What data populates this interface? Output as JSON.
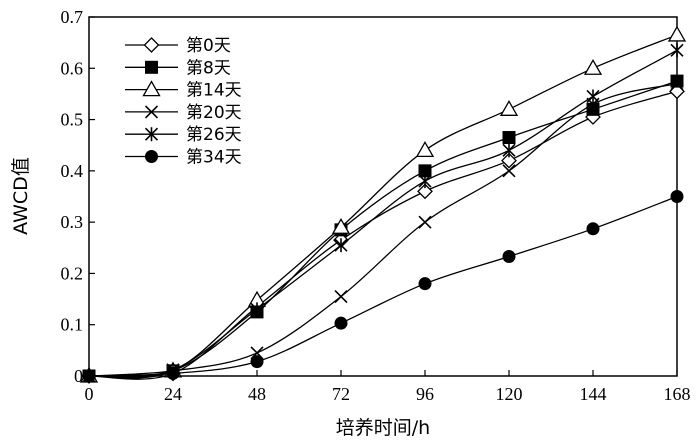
{
  "chart_data": {
    "type": "line",
    "title": "",
    "xlabel": "培养时间/h",
    "ylabel": "AWCD值",
    "x": [
      0,
      24,
      48,
      72,
      96,
      120,
      144,
      168
    ],
    "xticks": [
      "0",
      "24",
      "48",
      "72",
      "96",
      "120",
      "144",
      "168"
    ],
    "yticks": [
      "0",
      "0.1",
      "0.2",
      "0.3",
      "0.4",
      "0.5",
      "0.6",
      "0.7"
    ],
    "xlim": [
      0,
      168
    ],
    "ylim": [
      0,
      0.7
    ],
    "grid": false,
    "legend_position": "top-left",
    "series": [
      {
        "name": "第0天",
        "marker": "diamond-open",
        "values": [
          0,
          0.005,
          0.135,
          0.265,
          0.36,
          0.42,
          0.505,
          0.555
        ]
      },
      {
        "name": "第8天",
        "marker": "square-filled",
        "values": [
          0,
          0.01,
          0.125,
          0.285,
          0.4,
          0.465,
          0.52,
          0.575
        ]
      },
      {
        "name": "第14天",
        "marker": "triangle-open",
        "values": [
          0,
          0.01,
          0.148,
          0.29,
          0.44,
          0.52,
          0.6,
          0.665
        ]
      },
      {
        "name": "第20天",
        "marker": "x",
        "values": [
          0,
          0.01,
          0.045,
          0.155,
          0.3,
          0.4,
          0.53,
          0.57
        ]
      },
      {
        "name": "第26天",
        "marker": "asterisk",
        "values": [
          0,
          0.012,
          0.13,
          0.255,
          0.38,
          0.44,
          0.545,
          0.635
        ]
      },
      {
        "name": "第34天",
        "marker": "circle-filled",
        "values": [
          0,
          0.005,
          0.028,
          0.103,
          0.18,
          0.233,
          0.287,
          0.35
        ]
      }
    ]
  }
}
